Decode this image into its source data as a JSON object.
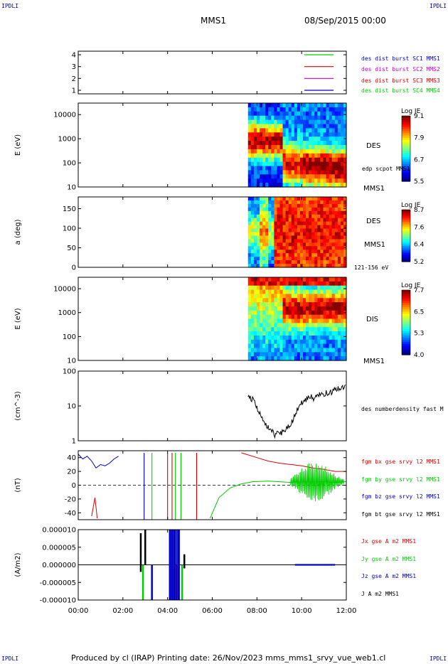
{
  "corners": {
    "tl": "IPDLI",
    "tr": "IPDLI",
    "bl": "IPDLI",
    "br": "IPDLI"
  },
  "header": {
    "spacecraft": "MMS1",
    "datetime": "08/Sep/2015 00:00"
  },
  "footer": {
    "text": "Produced by cl (IRAP)   Printing date: 26/Nov/2023   mms_mms1_srvy_vue_web1.cl"
  },
  "colors": {
    "c1": "#00cc00",
    "c2": "#dd0000",
    "c3": "#cc00cc",
    "c4": "#0000cc",
    "black": "#000000"
  },
  "chart_data": [
    {
      "type": "line",
      "title": "",
      "ylabel": "",
      "yticks": [
        "1",
        "2",
        "3",
        "4"
      ],
      "ylim": [
        0.7,
        4.3
      ],
      "legend": [
        {
          "label": "des dist burst SC1 MMS1",
          "color": "#0000cc"
        },
        {
          "label": "des dist burst SC2 MMS2",
          "color": "#cc00cc"
        },
        {
          "label": "des dist burst SC3 MMS3",
          "color": "#dd0000"
        },
        {
          "label": "des dist burst SC4 MMS4",
          "color": "#00cc00"
        }
      ],
      "series": [
        {
          "color": "#00cc00",
          "y": 4,
          "x": [
            9.5,
            10.5
          ]
        },
        {
          "color": "#dd0000",
          "y": 3,
          "x": [
            9.5,
            10.5
          ]
        },
        {
          "color": "#cc00cc",
          "y": 2,
          "x": [
            9.5,
            10.5
          ]
        },
        {
          "color": "#0000cc",
          "y": 1,
          "x": [
            9.5,
            10.5
          ]
        }
      ]
    },
    {
      "type": "heatmap",
      "ylabel": "E (eV)",
      "yscale": "log",
      "yticks": [
        "10",
        "100",
        "1000",
        "10000"
      ],
      "ylim": [
        10,
        30000
      ],
      "data_start_hour": 7.6,
      "labels": [
        "DES",
        "edp scpot MMS1",
        "MMS1"
      ],
      "colorbar": {
        "title": "Log JE",
        "ticks": [
          "9.1",
          "7.9",
          "6.7",
          "5.5"
        ],
        "range": [
          5.5,
          9.1
        ]
      }
    },
    {
      "type": "heatmap",
      "ylabel": "a (deg)",
      "yticks": [
        "0",
        "50",
        "100",
        "150"
      ],
      "ylim": [
        0,
        180
      ],
      "data_start_hour": 7.6,
      "labels": [
        "DES",
        "MMS1",
        "121-156 eV"
      ],
      "colorbar": {
        "title": "Log JE",
        "ticks": [
          "8.7",
          "7.6",
          "6.4",
          "5.2"
        ],
        "range": [
          5.2,
          8.7
        ]
      }
    },
    {
      "type": "heatmap",
      "ylabel": "E (eV)",
      "yscale": "log",
      "yticks": [
        "10",
        "100",
        "1000",
        "10000"
      ],
      "ylim": [
        10,
        30000
      ],
      "data_start_hour": 7.6,
      "labels": [
        "DIS",
        "MMS1"
      ],
      "colorbar": {
        "title": "Log JE",
        "ticks": [
          "7.7",
          "6.5",
          "5.3",
          "4.0"
        ],
        "range": [
          4.0,
          7.7
        ]
      }
    },
    {
      "type": "line",
      "ylabel": "(cm^-3)",
      "yscale": "log",
      "yticks": [
        "1",
        "10",
        "100"
      ],
      "ylim": [
        1,
        100
      ],
      "legend": [
        {
          "label": "des numberdensity fast M",
          "color": "#000000"
        }
      ],
      "series": [
        {
          "name": "des numberdensity fast M",
          "color": "#000000",
          "x": [
            7.6,
            7.8,
            8.0,
            8.2,
            8.4,
            8.6,
            8.8,
            9.0,
            9.2,
            9.4,
            9.6,
            9.8,
            10.0,
            10.2,
            10.4,
            10.6,
            10.8,
            11.0,
            11.2,
            11.4,
            11.6,
            11.8,
            12.0
          ],
          "y": [
            20,
            15,
            9,
            4.5,
            3,
            2,
            1.5,
            1.6,
            1.9,
            2.5,
            4,
            8,
            12,
            15,
            18,
            16,
            20,
            22,
            24,
            26,
            30,
            32,
            35
          ]
        }
      ]
    },
    {
      "type": "line",
      "ylabel": "(nT)",
      "yticks": [
        "-40",
        "-20",
        "0",
        "20",
        "40"
      ],
      "ylim": [
        -50,
        50
      ],
      "legend": [
        {
          "label": "fgm bx gse srvy l2 MMS1",
          "color": "#dd0000"
        },
        {
          "label": "fgm by gse srvy l2 MMS1",
          "color": "#00cc00"
        },
        {
          "label": "fgm bz gse srvy l2 MMS1",
          "color": "#0000cc"
        },
        {
          "label": "fgm bt gse srvy l2 MMS1",
          "color": "#000000"
        }
      ],
      "series": [
        {
          "name": "bx",
          "color": "#dd0000",
          "x": [
            7.3,
            8.0,
            8.5,
            9.0,
            9.5,
            10.0,
            10.5,
            11.0,
            11.5,
            12.0
          ],
          "y": [
            47,
            40,
            35,
            32,
            30,
            28,
            25,
            23,
            20,
            20
          ]
        },
        {
          "name": "by",
          "color": "#00cc00",
          "x": [
            5.9,
            6.3,
            6.8,
            7.3,
            7.8,
            8.5,
            9.0,
            9.5,
            10.0,
            10.5,
            11.0,
            11.5,
            12.0
          ],
          "y": [
            -48,
            -18,
            -4,
            2,
            5,
            6,
            5,
            4,
            5,
            5,
            5,
            4,
            5
          ]
        },
        {
          "name": "bz",
          "color": "#0000cc",
          "x": [
            0,
            0.2,
            0.4,
            0.6,
            0.8,
            1.0,
            1.2,
            1.4,
            1.6,
            1.8
          ],
          "y": [
            45,
            38,
            42,
            35,
            25,
            30,
            28,
            32,
            38,
            42
          ]
        }
      ]
    },
    {
      "type": "line",
      "ylabel": "(A/m2)",
      "yticks": [
        "-0.000010",
        "-0.000005",
        "0.000000",
        "0.000005",
        "0.000010"
      ],
      "ylim": [
        -1e-05,
        1e-05
      ],
      "legend": [
        {
          "label": "Jx gse A m2 MMS1",
          "color": "#dd0000"
        },
        {
          "label": "Jy gse A m2 MMS1",
          "color": "#00cc00"
        },
        {
          "label": "Jz gse A m2 MMS1",
          "color": "#0000cc"
        },
        {
          "label": "J A m2 MMS1",
          "color": "#000000"
        }
      ],
      "series": []
    }
  ],
  "xaxis": {
    "ticks": [
      "00:00",
      "02:00",
      "04:00",
      "06:00",
      "08:00",
      "10:00",
      "12:00"
    ],
    "range": [
      0,
      12
    ]
  }
}
